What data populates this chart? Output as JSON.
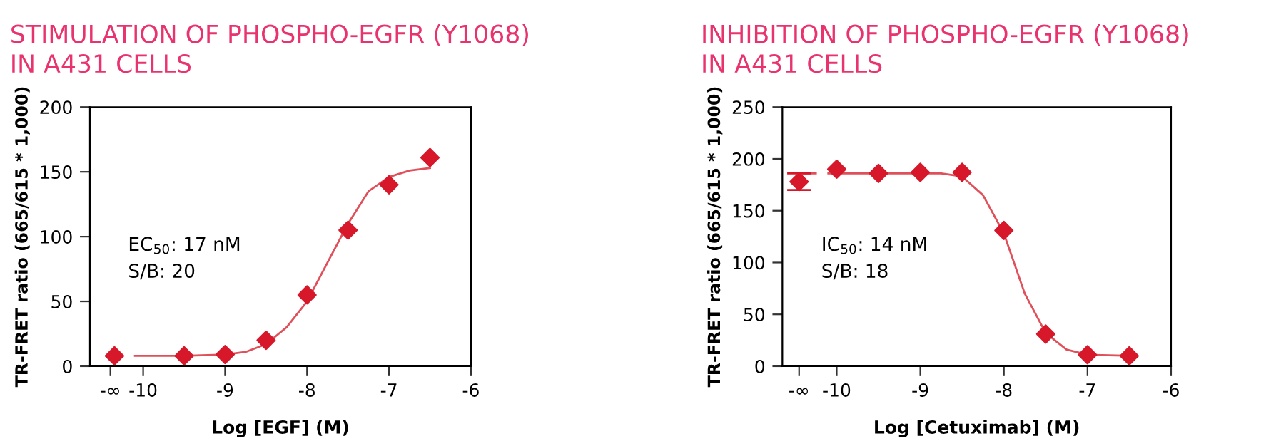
{
  "chart_data": [
    {
      "type": "scatter",
      "title": "STIMULATION OF PHOSPHO-EGFR (Y1068)\nIN A431 CELLS",
      "xlabel": "Log [EGF] (M)",
      "ylabel": "TR-FRET ratio (665/615 * 1,000)",
      "annotations": [
        "EC$_{50}$: 17 nM\nS/B: 20"
      ],
      "xlim": [
        -10.65,
        -6
      ],
      "xticks": [
        {
          "value": -10.4,
          "label": "-∞"
        },
        -10,
        -9,
        -8,
        -7,
        -6
      ],
      "ylim": [
        0,
        200
      ],
      "yticks": [
        0,
        50,
        100,
        150,
        200
      ],
      "grid": false,
      "legend": false,
      "series": [
        {
          "type": "line",
          "color": "#e0505a",
          "marker": "none",
          "line_style": "solid",
          "x": [
            -10.45,
            -10.25,
            -10.15,
            -10.1,
            -9.5,
            -9,
            -8.75,
            -8.5,
            -8.25,
            -8,
            -7.75,
            -7.5,
            -7.25,
            -7,
            -6.75,
            -6.5
          ],
          "values": [
            8,
            8,
            null,
            8,
            8,
            9,
            11,
            17,
            30,
            50,
            80,
            110,
            135,
            146,
            151,
            153
          ]
        },
        {
          "color": "#d7182a",
          "marker": "diamond",
          "x": [
            -10.35,
            -9.5,
            -9,
            -8.5,
            -8,
            -7.5,
            -7,
            -6.5
          ],
          "values": [
            8,
            8,
            9,
            20,
            55,
            105,
            140,
            161
          ]
        }
      ]
    },
    {
      "type": "scatter",
      "title": "INHIBITION OF PHOSPHO-EGFR (Y1068)\nIN A431 CELLS",
      "xlabel": "Log [Cetuximab] (M)",
      "ylabel": "TR-FRET ratio (665/615 * 1,000)",
      "annotations": [
        "IC$_{50}$: 14 nM\nS/B: 18"
      ],
      "xlim": [
        -10.65,
        -6
      ],
      "xticks": [
        {
          "value": -10.45,
          "label": "-∞"
        },
        -10,
        -9,
        -8,
        -7,
        -6
      ],
      "ylim": [
        0,
        250
      ],
      "yticks": [
        0,
        50,
        100,
        150,
        200,
        250
      ],
      "grid": false,
      "legend": false,
      "series": [
        {
          "type": "line",
          "color": "#e0505a",
          "marker": "none",
          "line_style": "solid",
          "x": [
            -10.45,
            -10.25,
            -10.15,
            -10.1,
            -9.5,
            -9,
            -8.75,
            -8.5,
            -8.25,
            -8,
            -7.75,
            -7.5,
            -7.25,
            -7,
            -6.5
          ],
          "values": [
            186,
            186,
            null,
            186,
            186,
            186,
            186,
            183,
            165,
            128,
            70,
            32,
            16,
            11,
            10
          ]
        },
        {
          "color": "#d7182a",
          "marker": "diamond",
          "x": [
            -10.45,
            -10,
            -9.5,
            -9,
            -8.5,
            -8,
            -7.5,
            -7,
            -6.5
          ],
          "values": [
            178,
            190,
            186,
            187,
            187,
            131,
            31,
            11,
            10
          ],
          "errors": [
            8,
            null,
            null,
            null,
            null,
            null,
            null,
            null,
            null
          ]
        }
      ]
    }
  ]
}
